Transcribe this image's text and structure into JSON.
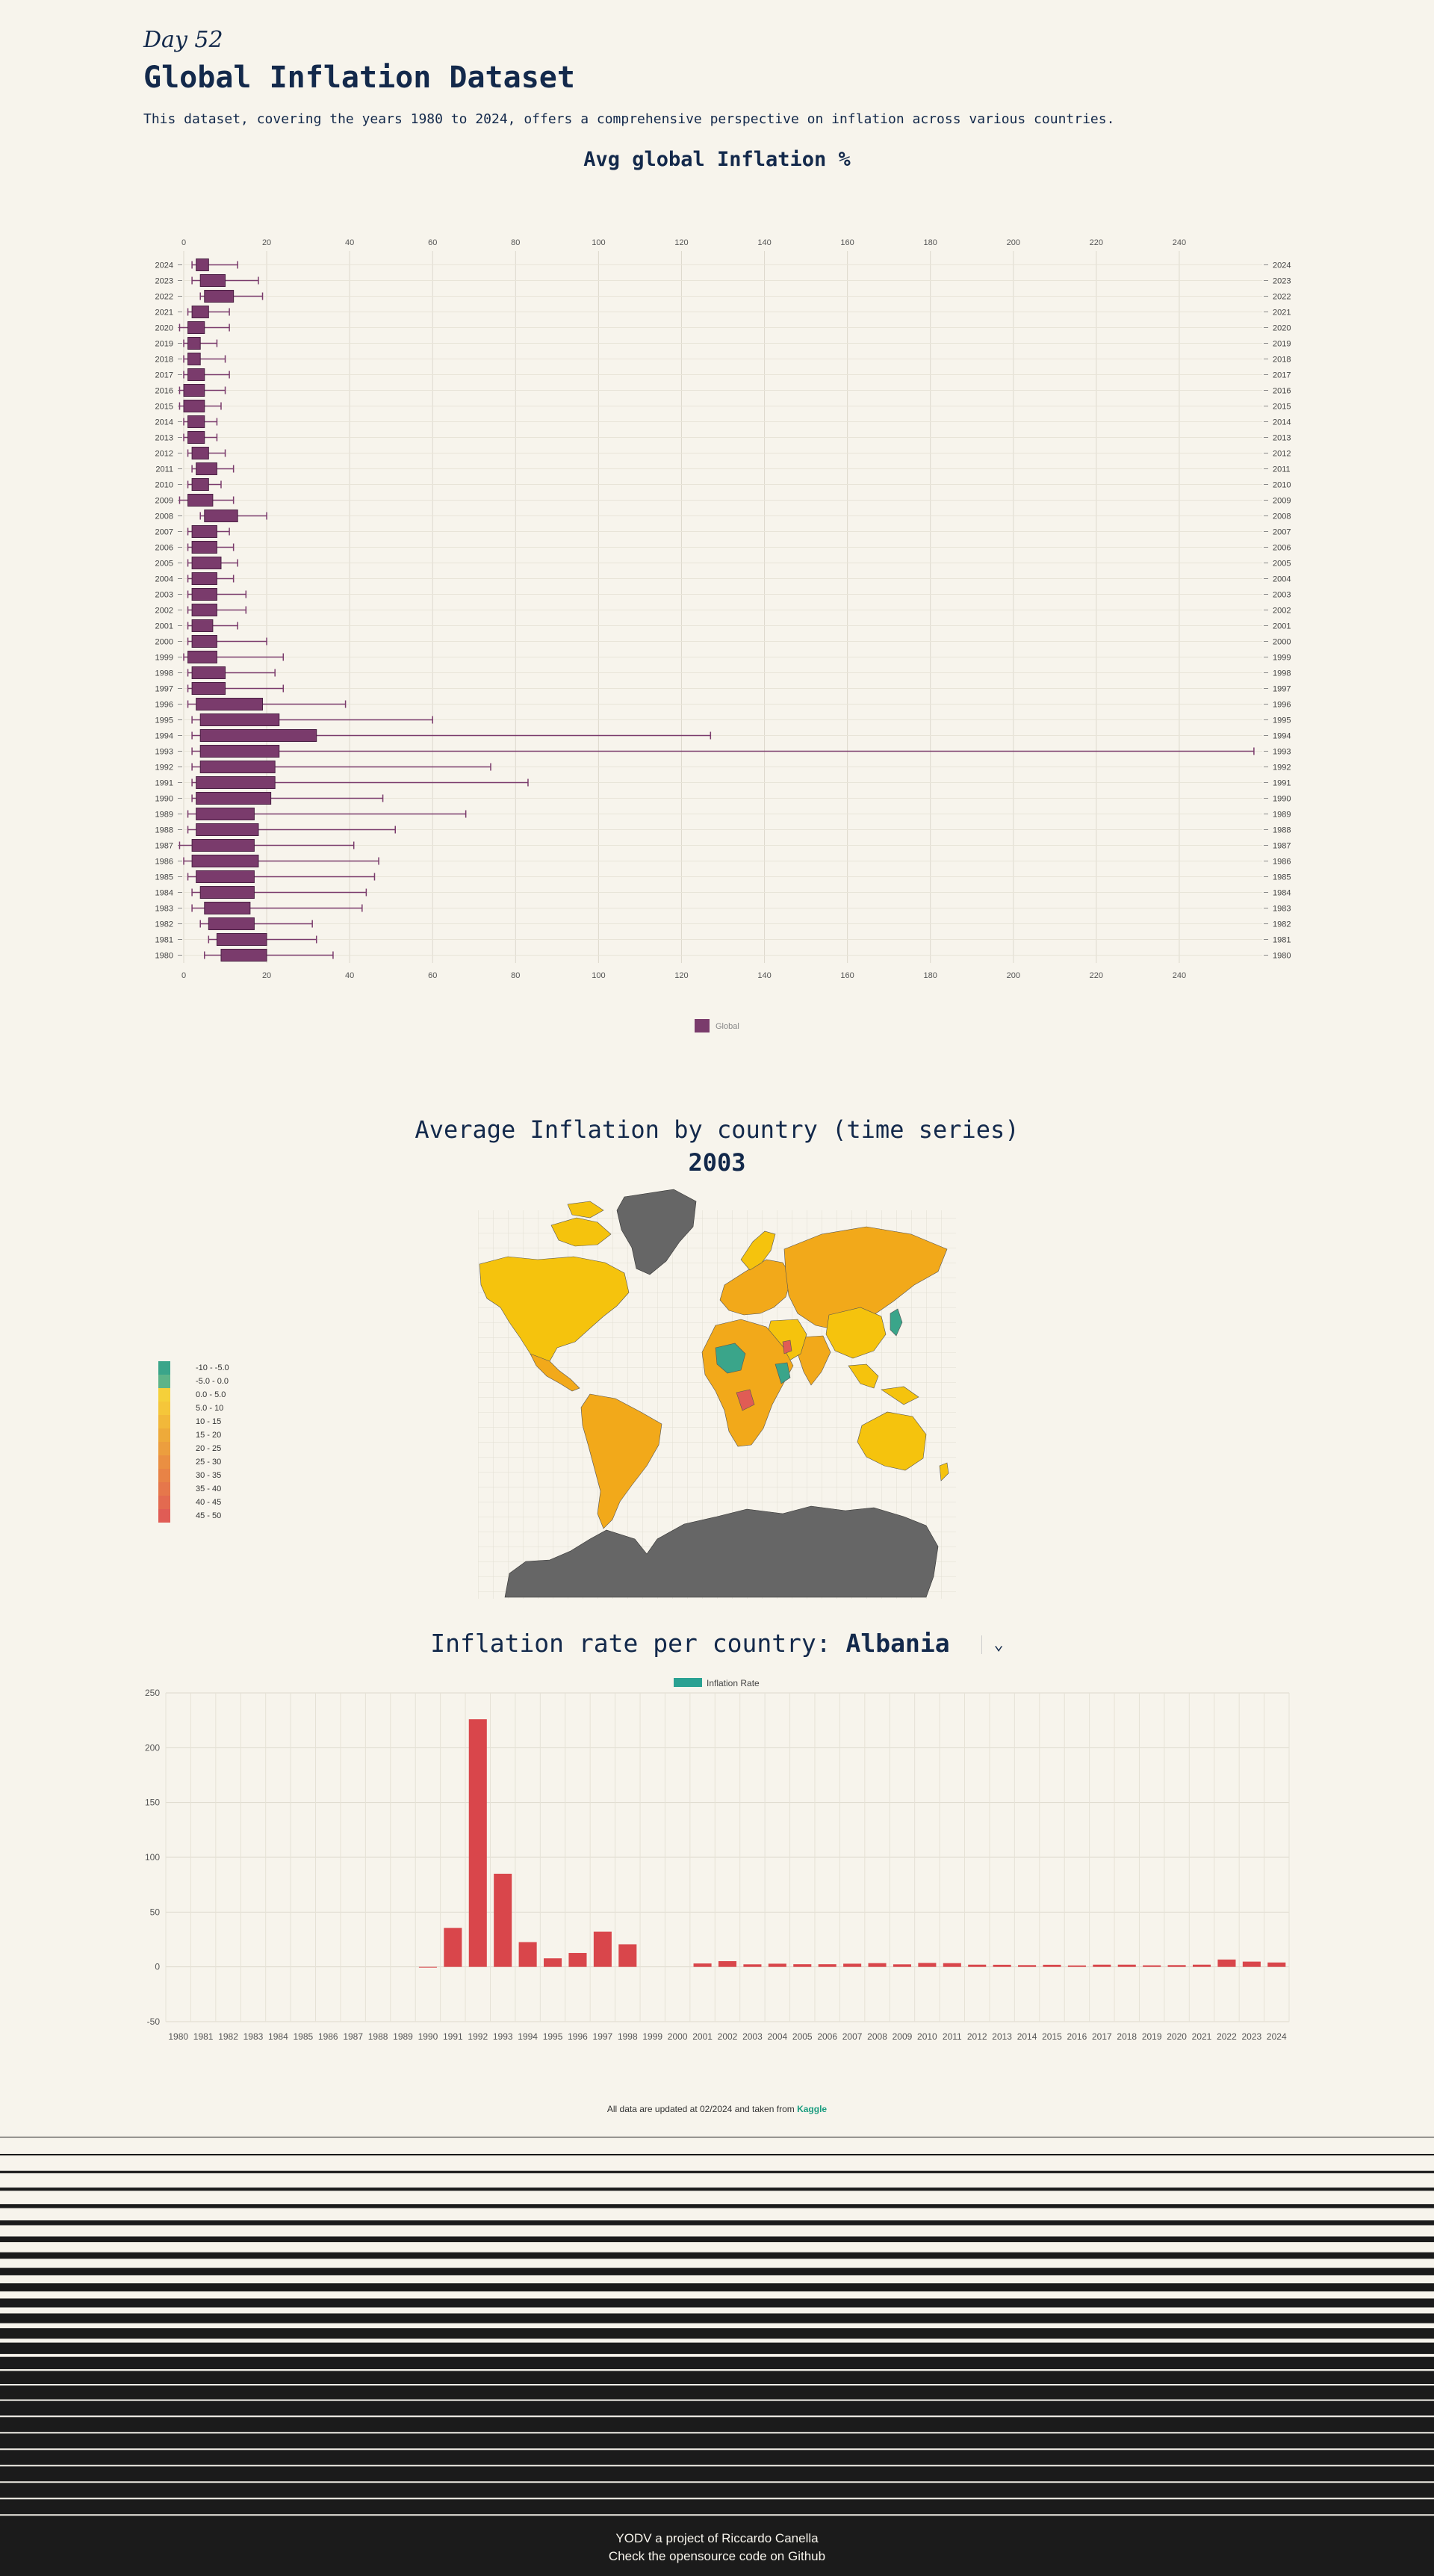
{
  "header": {
    "day": "Day 52",
    "title": "Global Inflation Dataset",
    "description": "This dataset, covering the years 1980 to 2024, offers a comprehensive perspective on inflation across various countries."
  },
  "box_chart": {
    "title": "Avg global Inflation %",
    "legend": "Global",
    "color": "#7a3b6c"
  },
  "map": {
    "title": "Average Inflation by country (time series)",
    "year": "2003",
    "legend": [
      "-10 - -5.0",
      "-5.0 - 0.0",
      "0.0 - 5.0",
      "5.0 - 10",
      "10 - 15",
      "15 - 20",
      "20 - 25",
      "25 - 30",
      "30 - 35",
      "35 - 40",
      "40 - 45",
      "45 - 50"
    ],
    "legend_colors": [
      "#3aa58a",
      "#5db488",
      "#f5d03a",
      "#f5c63a",
      "#f2b83a",
      "#eeaa3a",
      "#ec9e3e",
      "#ea8f42",
      "#e88346",
      "#e6774b",
      "#e36a50",
      "#e05c55"
    ]
  },
  "country_chart": {
    "label": "Inflation rate per country:",
    "country": "Albania",
    "legend": "Inflation Rate",
    "legend_color": "#2aa192",
    "bar_color": "#d9464b"
  },
  "note": {
    "text": "All data are updated at 02/2024 and taken from",
    "link": "Kaggle"
  },
  "footer": {
    "line1": "YODV a project of Riccardo Canella",
    "line2": "Check the opensource code on Github"
  },
  "chart_data": [
    {
      "type": "box",
      "orientation": "horizontal",
      "xlim": [
        0,
        260
      ],
      "x_ticks": [
        0,
        20,
        40,
        60,
        80,
        100,
        120,
        140,
        160,
        180,
        200,
        220,
        240
      ],
      "series": [
        {
          "name": "Global",
          "data": [
            {
              "year": "2024",
              "min": 2,
              "q1": 3,
              "q3": 6,
              "max": 13
            },
            {
              "year": "2023",
              "min": 2,
              "q1": 4,
              "q3": 10,
              "max": 18
            },
            {
              "year": "2022",
              "min": 4,
              "q1": 5,
              "q3": 12,
              "max": 19
            },
            {
              "year": "2021",
              "min": 1,
              "q1": 2,
              "q3": 6,
              "max": 11
            },
            {
              "year": "2020",
              "min": -1,
              "q1": 1,
              "q3": 5,
              "max": 11
            },
            {
              "year": "2019",
              "min": 0,
              "q1": 1,
              "q3": 4,
              "max": 8
            },
            {
              "year": "2018",
              "min": 0,
              "q1": 1,
              "q3": 4,
              "max": 10
            },
            {
              "year": "2017",
              "min": 0,
              "q1": 1,
              "q3": 5,
              "max": 11
            },
            {
              "year": "2016",
              "min": -1,
              "q1": 0,
              "q3": 5,
              "max": 10
            },
            {
              "year": "2015",
              "min": -1,
              "q1": 0,
              "q3": 5,
              "max": 9
            },
            {
              "year": "2014",
              "min": 0,
              "q1": 1,
              "q3": 5,
              "max": 8
            },
            {
              "year": "2013",
              "min": 0,
              "q1": 1,
              "q3": 5,
              "max": 8
            },
            {
              "year": "2012",
              "min": 1,
              "q1": 2,
              "q3": 6,
              "max": 10
            },
            {
              "year": "2011",
              "min": 2,
              "q1": 3,
              "q3": 8,
              "max": 12
            },
            {
              "year": "2010",
              "min": 1,
              "q1": 2,
              "q3": 6,
              "max": 9
            },
            {
              "year": "2009",
              "min": -1,
              "q1": 1,
              "q3": 7,
              "max": 12
            },
            {
              "year": "2008",
              "min": 4,
              "q1": 5,
              "q3": 13,
              "max": 20
            },
            {
              "year": "2007",
              "min": 1,
              "q1": 2,
              "q3": 8,
              "max": 11
            },
            {
              "year": "2006",
              "min": 1,
              "q1": 2,
              "q3": 8,
              "max": 12
            },
            {
              "year": "2005",
              "min": 1,
              "q1": 2,
              "q3": 9,
              "max": 13
            },
            {
              "year": "2004",
              "min": 1,
              "q1": 2,
              "q3": 8,
              "max": 12
            },
            {
              "year": "2003",
              "min": 1,
              "q1": 2,
              "q3": 8,
              "max": 15
            },
            {
              "year": "2002",
              "min": 1,
              "q1": 2,
              "q3": 8,
              "max": 15
            },
            {
              "year": "2001",
              "min": 1,
              "q1": 2,
              "q3": 7,
              "max": 13
            },
            {
              "year": "2000",
              "min": 1,
              "q1": 2,
              "q3": 8,
              "max": 20
            },
            {
              "year": "1999",
              "min": 0,
              "q1": 1,
              "q3": 8,
              "max": 24
            },
            {
              "year": "1998",
              "min": 1,
              "q1": 2,
              "q3": 10,
              "max": 22
            },
            {
              "year": "1997",
              "min": 1,
              "q1": 2,
              "q3": 10,
              "max": 24
            },
            {
              "year": "1996",
              "min": 1,
              "q1": 3,
              "q3": 19,
              "max": 39
            },
            {
              "year": "1995",
              "min": 2,
              "q1": 4,
              "q3": 23,
              "max": 60
            },
            {
              "year": "1994",
              "min": 2,
              "q1": 4,
              "q3": 32,
              "max": 127
            },
            {
              "year": "1993",
              "min": 2,
              "q1": 4,
              "q3": 23,
              "max": 258
            },
            {
              "year": "1992",
              "min": 2,
              "q1": 4,
              "q3": 22,
              "max": 74
            },
            {
              "year": "1991",
              "min": 2,
              "q1": 3,
              "q3": 22,
              "max": 83
            },
            {
              "year": "1990",
              "min": 2,
              "q1": 3,
              "q3": 21,
              "max": 48
            },
            {
              "year": "1989",
              "min": 1,
              "q1": 3,
              "q3": 17,
              "max": 68
            },
            {
              "year": "1988",
              "min": 1,
              "q1": 3,
              "q3": 18,
              "max": 51
            },
            {
              "year": "1987",
              "min": -1,
              "q1": 2,
              "q3": 17,
              "max": 41
            },
            {
              "year": "1986",
              "min": 0,
              "q1": 2,
              "q3": 18,
              "max": 47
            },
            {
              "year": "1985",
              "min": 1,
              "q1": 3,
              "q3": 17,
              "max": 46
            },
            {
              "year": "1984",
              "min": 2,
              "q1": 4,
              "q3": 17,
              "max": 44
            },
            {
              "year": "1983",
              "min": 2,
              "q1": 5,
              "q3": 16,
              "max": 43
            },
            {
              "year": "1982",
              "min": 4,
              "q1": 6,
              "q3": 17,
              "max": 31
            },
            {
              "year": "1981",
              "min": 6,
              "q1": 8,
              "q3": 20,
              "max": 32
            },
            {
              "year": "1980",
              "min": 5,
              "q1": 9,
              "q3": 20,
              "max": 36
            }
          ]
        }
      ],
      "grid": true,
      "legend": "bottom"
    },
    {
      "type": "bar",
      "ylim": [
        -50,
        250
      ],
      "y_ticks": [
        -50,
        0,
        50,
        100,
        150,
        200,
        250
      ],
      "categories": [
        "1980",
        "1981",
        "1982",
        "1983",
        "1984",
        "1985",
        "1986",
        "1987",
        "1988",
        "1989",
        "1990",
        "1991",
        "1992",
        "1993",
        "1994",
        "1995",
        "1996",
        "1997",
        "1998",
        "1999",
        "2000",
        "2001",
        "2002",
        "2003",
        "2004",
        "2005",
        "2006",
        "2007",
        "2008",
        "2009",
        "2010",
        "2011",
        "2012",
        "2013",
        "2014",
        "2015",
        "2016",
        "2017",
        "2018",
        "2019",
        "2020",
        "2021",
        "2022",
        "2023",
        "2024"
      ],
      "series": [
        {
          "name": "Inflation Rate",
          "values": [
            null,
            null,
            null,
            null,
            null,
            null,
            null,
            null,
            null,
            null,
            0,
            35.5,
            226,
            85,
            22.6,
            7.8,
            12.7,
            32.1,
            20.6,
            null,
            null,
            3.1,
            5.2,
            2.3,
            2.9,
            2.4,
            2.4,
            2.9,
            3.4,
            2.3,
            3.6,
            3.4,
            2,
            1.9,
            1.6,
            1.9,
            1.3,
            2,
            2,
            1.4,
            1.6,
            2,
            6.7,
            4.8,
            4
          ]
        }
      ],
      "grid": true,
      "legend": "top"
    }
  ]
}
